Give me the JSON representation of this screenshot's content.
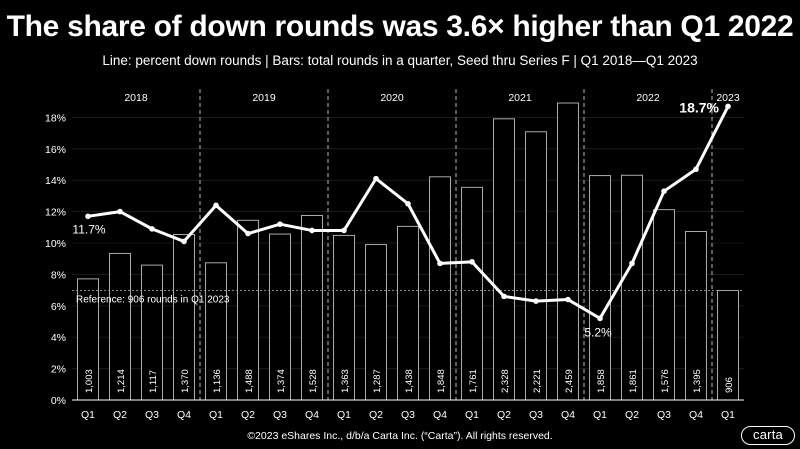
{
  "title": "The share of down rounds was 3.6× higher than Q1 2022",
  "subtitle": "Line: percent down rounds  |  Bars: total rounds in a quarter, Seed thru Series F  |  Q1 2018—Q1 2023",
  "footer": "©2023 eShares Inc., d/b/a Carta Inc. (“Carta”). All rights reserved.",
  "logo_text": "carta",
  "colors": {
    "background": "#000000",
    "bar_edge": "#bdbdbd",
    "line": "#ffffff",
    "divider": "#cccccc"
  },
  "chart_data": {
    "type": "bar",
    "categories": [
      "Q1",
      "Q2",
      "Q3",
      "Q4",
      "Q1",
      "Q2",
      "Q3",
      "Q4",
      "Q1",
      "Q2",
      "Q3",
      "Q4",
      "Q1",
      "Q2",
      "Q3",
      "Q4",
      "Q1",
      "Q2",
      "Q3",
      "Q4",
      "Q1"
    ],
    "years": [
      {
        "label": "2018",
        "start": 0,
        "end": 3
      },
      {
        "label": "2019",
        "start": 4,
        "end": 7
      },
      {
        "label": "2020",
        "start": 8,
        "end": 11
      },
      {
        "label": "2021",
        "start": 12,
        "end": 15
      },
      {
        "label": "2022",
        "start": 16,
        "end": 19
      },
      {
        "label": "2023",
        "start": 20,
        "end": 20
      }
    ],
    "series": [
      {
        "type": "bar",
        "values": [
          1003,
          1214,
          1117,
          1370,
          1136,
          1488,
          1374,
          1528,
          1363,
          1287,
          1438,
          1848,
          1761,
          2328,
          2221,
          2459,
          1858,
          1861,
          1576,
          1395,
          906
        ],
        "labels": [
          "1,003",
          "1,214",
          "1,117",
          "1,370",
          "1,136",
          "1,488",
          "1,374",
          "1,528",
          "1,363",
          "1,287",
          "1,438",
          "1,848",
          "1,761",
          "2,328",
          "2,221",
          "2,459",
          "1,858",
          "1,861",
          "1,576",
          "1,395",
          "906"
        ]
      },
      {
        "type": "line",
        "values": [
          11.7,
          12.0,
          10.9,
          10.1,
          12.4,
          10.6,
          11.2,
          10.8,
          10.8,
          14.1,
          12.5,
          8.7,
          8.8,
          6.6,
          6.3,
          6.4,
          5.2,
          8.7,
          13.3,
          14.7,
          18.7
        ]
      }
    ],
    "y_ticks": [
      "0%",
      "2%",
      "4%",
      "6%",
      "8%",
      "10%",
      "12%",
      "14%",
      "16%",
      "18%"
    ],
    "ylim": [
      0,
      20
    ],
    "bar_ylim": [
      0,
      2600
    ],
    "reference_line": {
      "value": 906,
      "label": "Reference: 906 rounds in Q1 2023"
    },
    "point_labels": [
      {
        "index": 0,
        "text": "11.7%"
      },
      {
        "index": 16,
        "text": "5.2%"
      },
      {
        "index": 20,
        "text": "18.7%"
      }
    ]
  }
}
